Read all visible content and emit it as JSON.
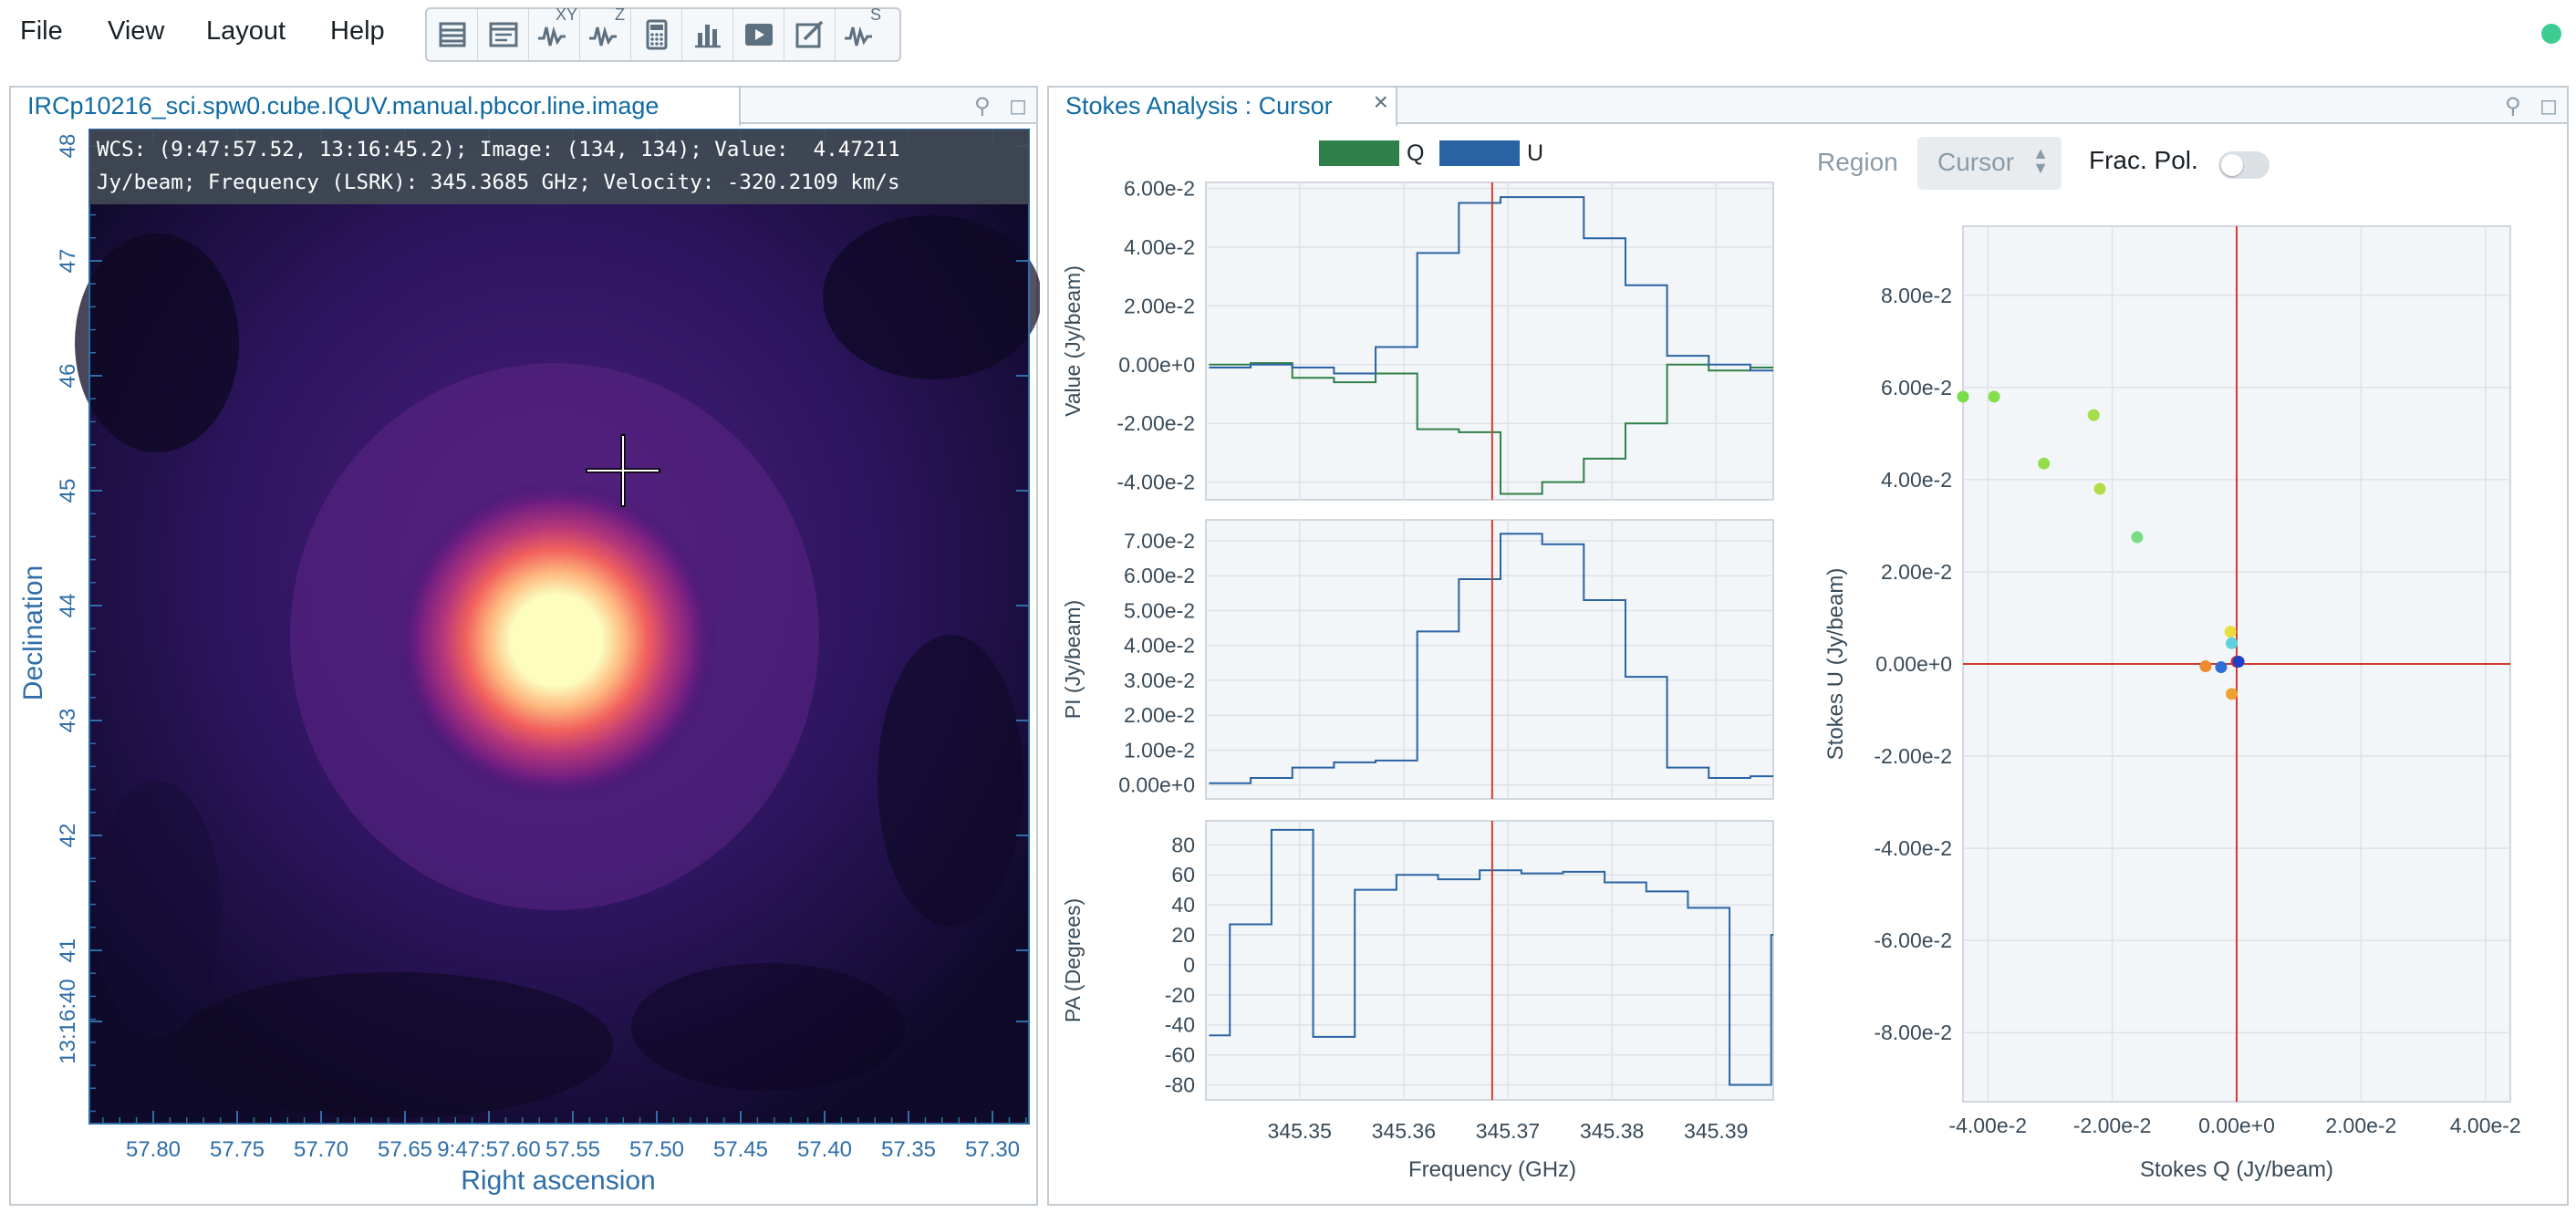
{
  "menu": {
    "file": "File",
    "view": "View",
    "layout": "Layout",
    "help": "Help"
  },
  "toolbar": {
    "buttons": [
      "layers-icon",
      "image-list-icon",
      "spatial-profiler-icon",
      "spectral-profiler-icon",
      "statistics-icon",
      "histogram-icon",
      "animator-icon",
      "render-config-icon",
      "stokes-analysis-icon"
    ],
    "xy_sup": "XY",
    "z_sup": "Z",
    "s_sup": "S"
  },
  "status": {
    "color": "#3dcc91"
  },
  "image_panel": {
    "tab_title": "IRCp10216_sci.spw0.cube.IQUV.manual.pbcor.line.image",
    "cursor_line1": "WCS: (9:47:57.52, 13:16:45.2); Image: (134, 134); Value:  4.47211",
    "cursor_line2": "Jy/beam; Frequency (LSRK): 345.3685 GHz; Velocity: -320.2109 km/s",
    "x_axis_label": "Right ascension",
    "y_axis_label": "Declination",
    "x_ticks": [
      "57.80",
      "57.75",
      "57.70",
      "57.65",
      "9:47:57.60",
      "57.55",
      "57.50",
      "57.45",
      "57.40",
      "57.35",
      "57.30"
    ],
    "y_ticks": [
      "48",
      "47",
      "46",
      "45",
      "44",
      "43",
      "42",
      "41",
      "13:16:40"
    ],
    "axis_color": "#2f6ea8"
  },
  "stokes_panel": {
    "tab_title": "Stokes Analysis : Cursor",
    "legend": [
      {
        "name": "Q",
        "color": "#2f8048"
      },
      {
        "name": "U",
        "color": "#2a63a3"
      }
    ],
    "region_label": "Region",
    "region_value": "Cursor",
    "frac_pol_label": "Frac. Pol.",
    "frac_pol_on": false,
    "frequency_axis_label": "Frequency (GHz)",
    "scatter_x_label": "Stokes Q (Jy/beam)",
    "scatter_y_label": "Stokes U (Jy/beam)"
  },
  "chart_data": [
    {
      "type": "line",
      "step": true,
      "ylabel": "Value (Jy/beam)",
      "y_ticks": [
        "6.00e-2",
        "4.00e-2",
        "2.00e-2",
        "0.00e+0",
        "-2.00e-2",
        "-4.00e-2"
      ],
      "ylim": [
        -0.046,
        0.062
      ],
      "xlim": [
        345.341,
        345.3955
      ],
      "x": [
        345.3413,
        345.3453,
        345.3493,
        345.3533,
        345.3573,
        345.3613,
        345.3653,
        345.3693,
        345.3733,
        345.3773,
        345.3813,
        345.3853,
        345.3893,
        345.3933
      ],
      "series": [
        {
          "name": "Q",
          "color": "#2f8048",
          "values": [
            0.0,
            0.0005,
            -0.0045,
            -0.006,
            -0.003,
            -0.022,
            -0.023,
            -0.044,
            -0.04,
            -0.032,
            -0.02,
            0.0,
            -0.002,
            -0.001
          ]
        },
        {
          "name": "U",
          "color": "#2a63a3",
          "values": [
            -0.001,
            0.0,
            -0.001,
            -0.003,
            0.006,
            0.038,
            0.055,
            0.057,
            0.057,
            0.043,
            0.027,
            0.003,
            0.0,
            -0.002
          ]
        }
      ],
      "cursor_x": 345.3685
    },
    {
      "type": "line",
      "step": true,
      "ylabel": "PI (Jy/beam)",
      "y_ticks": [
        "7.00e-2",
        "6.00e-2",
        "5.00e-2",
        "4.00e-2",
        "3.00e-2",
        "2.00e-2",
        "1.00e-2",
        "0.00e+0"
      ],
      "ylim": [
        -0.004,
        0.076
      ],
      "xlim": [
        345.341,
        345.3955
      ],
      "x": [
        345.3413,
        345.3453,
        345.3493,
        345.3533,
        345.3573,
        345.3613,
        345.3653,
        345.3693,
        345.3733,
        345.3773,
        345.3813,
        345.3853,
        345.3893,
        345.3933
      ],
      "series": [
        {
          "name": "PI",
          "color": "#2a63a3",
          "values": [
            0.0005,
            0.002,
            0.005,
            0.0065,
            0.007,
            0.044,
            0.059,
            0.072,
            0.069,
            0.053,
            0.031,
            0.005,
            0.002,
            0.0025
          ]
        }
      ],
      "cursor_x": 345.3685
    },
    {
      "type": "line",
      "step": true,
      "ylabel": "PA (Degrees)",
      "y_ticks": [
        "80",
        "60",
        "40",
        "20",
        "0",
        "-20",
        "-40",
        "-60",
        "-80"
      ],
      "ylim": [
        -90,
        96
      ],
      "xlim": [
        345.341,
        345.3955
      ],
      "x_ticks": [
        "345.35",
        "345.36",
        "345.37",
        "345.38",
        "345.39"
      ],
      "x": [
        345.3413,
        345.3433,
        345.3473,
        345.3513,
        345.3553,
        345.3593,
        345.3633,
        345.3673,
        345.3713,
        345.3753,
        345.3793,
        345.3833,
        345.3873,
        345.3913,
        345.3953
      ],
      "series": [
        {
          "name": "PA",
          "color": "#2a63a3",
          "values": [
            -47,
            27,
            90,
            -48,
            50,
            60,
            57,
            63,
            61,
            62,
            55,
            49,
            38,
            -80,
            20
          ]
        }
      ],
      "cursor_x": 345.3685
    },
    {
      "type": "scatter",
      "xlabel": "Stokes Q (Jy/beam)",
      "ylabel": "Stokes U (Jy/beam)",
      "x_ticks": [
        "-4.00e-2",
        "-2.00e-2",
        "0.00e+0",
        "2.00e-2",
        "4.00e-2"
      ],
      "y_ticks": [
        "8.00e-2",
        "6.00e-2",
        "4.00e-2",
        "2.00e-2",
        "0.00e+0",
        "-2.00e-2",
        "-4.00e-2",
        "-6.00e-2",
        "-8.00e-2"
      ],
      "xlim": [
        -0.044,
        0.044
      ],
      "ylim": [
        -0.095,
        0.095
      ],
      "points": [
        {
          "x": -0.044,
          "y": 0.058,
          "color": "#77dd4a"
        },
        {
          "x": -0.039,
          "y": 0.058,
          "color": "#84dd4a"
        },
        {
          "x": -0.031,
          "y": 0.0435,
          "color": "#92dd4a"
        },
        {
          "x": -0.023,
          "y": 0.054,
          "color": "#a6dd4a"
        },
        {
          "x": -0.022,
          "y": 0.038,
          "color": "#b2dd48"
        },
        {
          "x": -0.016,
          "y": 0.0275,
          "color": "#7adc80"
        },
        {
          "x": -0.001,
          "y": 0.007,
          "color": "#e8dd3c"
        },
        {
          "x": -0.0008,
          "y": 0.0045,
          "color": "#5fd0e0"
        },
        {
          "x": -0.005,
          "y": -0.0005,
          "color": "#f08a2e"
        },
        {
          "x": -0.0025,
          "y": -0.0007,
          "color": "#2e6fd8"
        },
        {
          "x": -0.0008,
          "y": -0.0065,
          "color": "#f0a030"
        },
        {
          "x": 0.0,
          "y": 0.0005,
          "color": "#d33a2e"
        },
        {
          "x": 0.0003,
          "y": 0.0005,
          "color": "#1f3fc8"
        }
      ],
      "crosshair": {
        "x": 0.0,
        "y": 0.0,
        "color": "#d33a2e"
      }
    }
  ]
}
